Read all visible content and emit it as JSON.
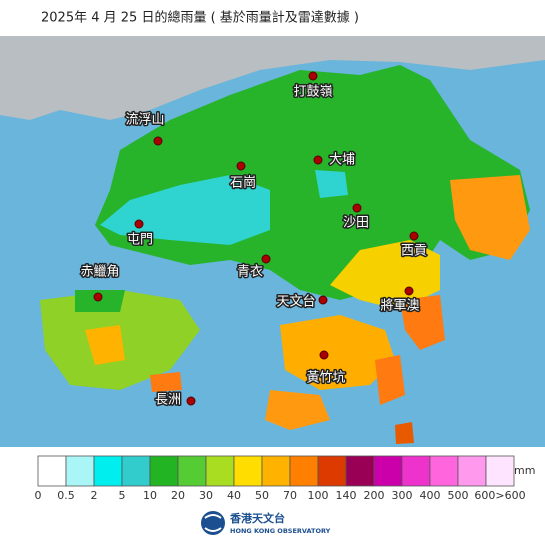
{
  "title": "2025年 4 月 25 日的總雨量 ( 基於雨量計及雷達數據 )",
  "places": [
    "打鼓嶺",
    "流浮山",
    "大埔",
    "石崗",
    "沙田",
    "屯門",
    "西貢",
    "赤鱲角",
    "青衣",
    "天文台",
    "將軍澳",
    "黃竹坑",
    "長洲"
  ],
  "legend": {
    "unit": "mm",
    "labels": [
      "0",
      "0.5",
      "2",
      "5",
      "10",
      "20",
      "30",
      "40",
      "50",
      "70",
      "100",
      "140",
      "200",
      "300",
      "400",
      "500",
      "600>600"
    ],
    "colors": [
      "#ffffff",
      "#aaf5f5",
      "#00eeee",
      "#33cccc",
      "#22b422",
      "#55cc33",
      "#a8dd22",
      "#ffdd00",
      "#ffb300",
      "#ff7f00",
      "#dd3a00",
      "#990055",
      "#cc00aa",
      "#ee33cc",
      "#ff66dd",
      "#ff99ee",
      "#ffe4ff"
    ]
  },
  "logo": {
    "name": "香港天文台",
    "english": "HONG KONG OBSERVATORY"
  }
}
